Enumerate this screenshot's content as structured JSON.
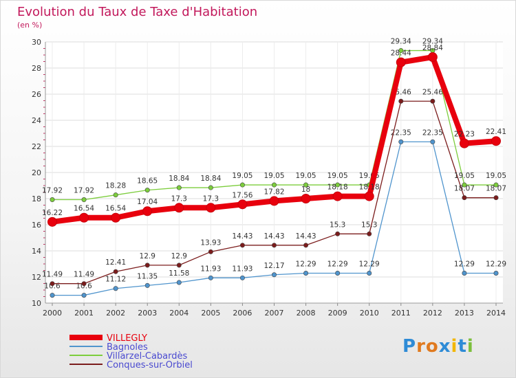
{
  "chart_data": {
    "type": "line",
    "title": "Evolution du Taux de Taxe d'Habitation",
    "subtitle": "(en %)",
    "x": [
      "2000",
      "2001",
      "2002",
      "2003",
      "2004",
      "2005",
      "2006",
      "2007",
      "2008",
      "2009",
      "2010",
      "2011",
      "2012",
      "2013",
      "2014"
    ],
    "ylim": [
      10,
      30
    ],
    "yticks": [
      10,
      12,
      14,
      16,
      18,
      20,
      22,
      24,
      26,
      28,
      30
    ],
    "grid": true,
    "legend_position": "bottom-left",
    "series": [
      {
        "name": "VILLEGLY",
        "color": "#e8000d",
        "values": [
          16.22,
          16.54,
          16.54,
          17.04,
          17.3,
          17.3,
          17.56,
          17.82,
          18,
          18.18,
          18.18,
          28.44,
          28.84,
          22.23,
          22.41
        ],
        "labels": [
          "16.22",
          "16.54",
          "16.54",
          "17.04",
          "17.3",
          "17.3",
          "17.56",
          "17.82",
          "18",
          "18.18",
          "18.18",
          "28.44",
          "28.84",
          "22.23",
          "22.41"
        ]
      },
      {
        "name": "Bagnoles",
        "color": "#4f94cd",
        "values": [
          10.6,
          10.6,
          11.12,
          11.35,
          11.58,
          11.93,
          11.93,
          12.17,
          12.29,
          12.29,
          12.29,
          22.35,
          22.35,
          12.29,
          12.29
        ],
        "labels": [
          "10.6",
          "10.6",
          "11.12",
          "11.35",
          "11.58",
          "11.93",
          "11.93",
          "12.17",
          "12.29",
          "12.29",
          "12.29",
          "22.35",
          "22.35",
          "12.29",
          "12.29"
        ]
      },
      {
        "name": "Villarzel-Cabardès",
        "color": "#7ccd3c",
        "values": [
          17.92,
          17.92,
          18.28,
          18.65,
          18.84,
          18.84,
          19.05,
          19.05,
          19.05,
          19.05,
          19.05,
          29.34,
          29.34,
          19.05,
          19.05
        ],
        "labels": [
          "17.92",
          "17.92",
          "18.28",
          "18.65",
          "18.84",
          "18.84",
          "19.05",
          "19.05",
          "19.05",
          "19.05",
          "19.05",
          "29.34",
          "29.34",
          "19.05",
          "19.05"
        ]
      },
      {
        "name": "Conques-sur-Orbiel",
        "color": "#7b1c1c",
        "values": [
          11.49,
          11.49,
          12.41,
          12.9,
          12.9,
          13.93,
          14.43,
          14.43,
          14.43,
          15.3,
          15.3,
          25.46,
          25.46,
          18.07,
          18.07
        ],
        "labels": [
          "11.49",
          "11.49",
          "12.41",
          "12.9",
          "12.9",
          "13.93",
          "14.43",
          "14.43",
          "14.43",
          "15.3",
          "15.3",
          "25.46",
          "25.46",
          "18.07",
          "18.07"
        ]
      }
    ]
  },
  "logo": {
    "letters": [
      "P",
      "r",
      "o",
      "x",
      "i",
      "t",
      "i"
    ],
    "colors": [
      "#2e8bd6",
      "#e07a1f",
      "#e07a1f",
      "#2e8bd6",
      "#f2b705",
      "#2e8bd6",
      "#7cbf3c"
    ]
  }
}
